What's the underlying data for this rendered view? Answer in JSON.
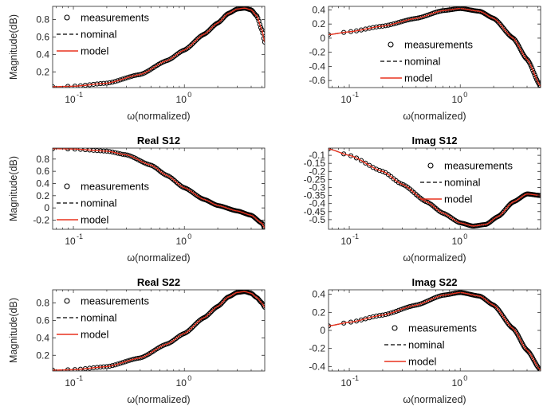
{
  "colors": {
    "axes": "#262626",
    "measurement_marker": "#000000",
    "nominal_line": "#000000",
    "model_line": "#e8321e",
    "background": "#ffffff"
  },
  "chart_data": [
    {
      "type": "line",
      "title": "",
      "xlabel": "ω(normalized)",
      "ylabel": "Magnitude(dB)",
      "xscale": "log",
      "xlim": [
        0.065,
        5.3
      ],
      "ylim": [
        0.02,
        0.95
      ],
      "xticks": [
        {
          "value": 0.1,
          "base": "10",
          "exp": "-1"
        },
        {
          "value": 1,
          "base": "10",
          "exp": "0"
        }
      ],
      "yticks": [
        0.2,
        0.4,
        0.6,
        0.8
      ],
      "curve": {
        "x": [
          0.065,
          0.1,
          0.2,
          0.4,
          0.7,
          1.0,
          1.5,
          2.0,
          2.5,
          3.0,
          3.5,
          4.0,
          4.5,
          5.0,
          5.3
        ],
        "y": [
          0.03,
          0.035,
          0.07,
          0.17,
          0.33,
          0.45,
          0.63,
          0.76,
          0.87,
          0.92,
          0.93,
          0.91,
          0.84,
          0.68,
          0.54
        ]
      },
      "legend": {
        "position": "top-left",
        "entries": [
          "measurements",
          "nominal",
          "model"
        ]
      },
      "series": [
        {
          "name": "measurements",
          "style": "circle-marker"
        },
        {
          "name": "nominal",
          "style": "dashed-line"
        },
        {
          "name": "model",
          "style": "solid-line"
        }
      ]
    },
    {
      "type": "line",
      "title": "",
      "xlabel": "ω(normalized)",
      "ylabel": "",
      "xscale": "log",
      "xlim": [
        0.065,
        5.3
      ],
      "ylim": [
        -0.7,
        0.45
      ],
      "xticks": [
        {
          "value": 0.1,
          "base": "10",
          "exp": "-1"
        },
        {
          "value": 1,
          "base": "10",
          "exp": "0"
        }
      ],
      "yticks": [
        0.4,
        0.2,
        0,
        -0.2,
        -0.4,
        -0.6
      ],
      "curve": {
        "x": [
          0.065,
          0.1,
          0.2,
          0.4,
          0.7,
          1.0,
          1.5,
          2.0,
          3.0,
          4.0,
          5.3
        ],
        "y": [
          0.05,
          0.09,
          0.17,
          0.28,
          0.39,
          0.42,
          0.38,
          0.28,
          0.0,
          -0.3,
          -0.68
        ]
      },
      "legend": {
        "position": "middle-left",
        "entries": [
          "measurements",
          "nominal",
          "model"
        ]
      },
      "series": [
        {
          "name": "measurements",
          "style": "circle-marker"
        },
        {
          "name": "nominal",
          "style": "dashed-line"
        },
        {
          "name": "model",
          "style": "solid-line"
        }
      ]
    },
    {
      "type": "line",
      "title": "Real S12",
      "xlabel": "ω(normalized)",
      "ylabel": "Magnitude(dB)",
      "xscale": "log",
      "xlim": [
        0.065,
        5.3
      ],
      "ylim": [
        -0.35,
        0.98
      ],
      "xticks": [
        {
          "value": 0.1,
          "base": "10",
          "exp": "-1"
        },
        {
          "value": 1,
          "base": "10",
          "exp": "0"
        }
      ],
      "yticks": [
        0.8,
        0.6,
        0.4,
        0.2,
        0,
        -0.2
      ],
      "curve": {
        "x": [
          0.065,
          0.1,
          0.2,
          0.3,
          0.5,
          0.7,
          1.0,
          1.5,
          2.0,
          3.0,
          4.0,
          5.0,
          5.3
        ],
        "y": [
          0.97,
          0.965,
          0.93,
          0.87,
          0.7,
          0.53,
          0.33,
          0.14,
          0.04,
          -0.05,
          -0.12,
          -0.25,
          -0.33
        ]
      },
      "legend": {
        "position": "middle-left",
        "entries": [
          "measurements",
          "nominal",
          "model"
        ]
      },
      "series": [
        {
          "name": "measurements",
          "style": "circle-marker"
        },
        {
          "name": "nominal",
          "style": "dashed-line"
        },
        {
          "name": "model",
          "style": "solid-line"
        }
      ]
    },
    {
      "type": "line",
      "title": "Imag S12",
      "xlabel": "ω(normalized)",
      "ylabel": "",
      "xscale": "log",
      "xlim": [
        0.065,
        5.3
      ],
      "ylim": [
        -0.56,
        -0.055
      ],
      "xticks": [
        {
          "value": 0.1,
          "base": "10",
          "exp": "-1"
        },
        {
          "value": 1,
          "base": "10",
          "exp": "0"
        }
      ],
      "yticks": [
        -0.1,
        -0.15,
        -0.2,
        -0.25,
        -0.3,
        -0.35,
        -0.4,
        -0.45,
        -0.5
      ],
      "curve": {
        "x": [
          0.065,
          0.1,
          0.2,
          0.3,
          0.5,
          0.7,
          1.0,
          1.3,
          1.7,
          2.2,
          3.0,
          4.0,
          5.3
        ],
        "y": [
          -0.06,
          -0.1,
          -0.2,
          -0.28,
          -0.39,
          -0.46,
          -0.52,
          -0.54,
          -0.53,
          -0.48,
          -0.39,
          -0.34,
          -0.35
        ]
      },
      "legend": {
        "position": "top-right",
        "entries": [
          "measurements",
          "nominal",
          "model"
        ]
      },
      "series": [
        {
          "name": "measurements",
          "style": "circle-marker"
        },
        {
          "name": "nominal",
          "style": "dashed-line"
        },
        {
          "name": "model",
          "style": "solid-line"
        }
      ]
    },
    {
      "type": "line",
      "title": "Real S22",
      "xlabel": "ω(normalized)",
      "ylabel": "Magnitude(dB)",
      "xscale": "log",
      "xlim": [
        0.065,
        5.3
      ],
      "ylim": [
        0.02,
        0.95
      ],
      "xticks": [
        {
          "value": 0.1,
          "base": "10",
          "exp": "-1"
        },
        {
          "value": 1,
          "base": "10",
          "exp": "0"
        }
      ],
      "yticks": [
        0.2,
        0.4,
        0.6,
        0.8
      ],
      "curve": {
        "x": [
          0.065,
          0.1,
          0.2,
          0.4,
          0.7,
          1.0,
          1.5,
          2.0,
          2.5,
          3.0,
          3.5,
          4.0,
          4.5,
          5.0,
          5.3
        ],
        "y": [
          0.03,
          0.035,
          0.07,
          0.17,
          0.33,
          0.45,
          0.63,
          0.76,
          0.87,
          0.92,
          0.93,
          0.91,
          0.86,
          0.8,
          0.75
        ]
      },
      "legend": {
        "position": "top-left",
        "entries": [
          "measurements",
          "nominal",
          "model"
        ]
      },
      "series": [
        {
          "name": "measurements",
          "style": "circle-marker"
        },
        {
          "name": "nominal",
          "style": "dashed-line"
        },
        {
          "name": "model",
          "style": "solid-line"
        }
      ]
    },
    {
      "type": "line",
      "title": "Imag S22",
      "xlabel": "ω(normalized)",
      "ylabel": "",
      "xscale": "log",
      "xlim": [
        0.065,
        5.3
      ],
      "ylim": [
        -0.45,
        0.45
      ],
      "xticks": [
        {
          "value": 0.1,
          "base": "10",
          "exp": "-1"
        },
        {
          "value": 1,
          "base": "10",
          "exp": "0"
        }
      ],
      "yticks": [
        0.4,
        0.2,
        0,
        -0.2,
        -0.4
      ],
      "curve": {
        "x": [
          0.065,
          0.1,
          0.2,
          0.4,
          0.7,
          1.0,
          1.5,
          2.0,
          3.0,
          4.0,
          5.3
        ],
        "y": [
          0.05,
          0.09,
          0.17,
          0.28,
          0.39,
          0.42,
          0.38,
          0.28,
          0.02,
          -0.22,
          -0.44
        ]
      },
      "legend": {
        "position": "middle-left",
        "entries": [
          "measurements",
          "nominal",
          "model"
        ]
      },
      "series": [
        {
          "name": "measurements",
          "style": "circle-marker"
        },
        {
          "name": "nominal",
          "style": "dashed-line"
        },
        {
          "name": "model",
          "style": "solid-line"
        }
      ]
    }
  ]
}
